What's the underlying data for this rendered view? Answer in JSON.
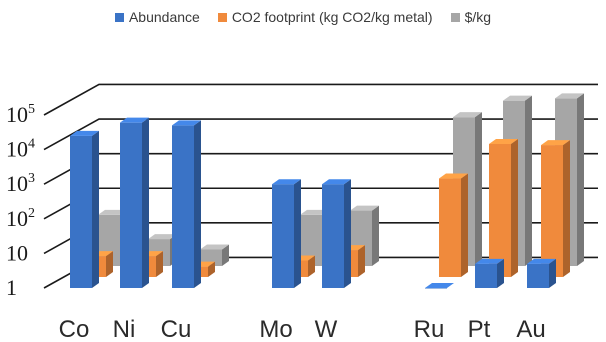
{
  "chart_data": {
    "type": "bar",
    "categories": [
      "Co",
      "Ni",
      "Cu",
      "Mo",
      "W",
      "Ru",
      "Pt",
      "Au"
    ],
    "scale": "log10",
    "ylim": [
      1,
      100000
    ],
    "y_ticks": [
      {
        "value": 1,
        "label": "1",
        "sup": ""
      },
      {
        "value": 10,
        "label": "10",
        "sup": ""
      },
      {
        "value": 100,
        "label": "10",
        "sup": "2"
      },
      {
        "value": 1000,
        "label": "10",
        "sup": "3"
      },
      {
        "value": 10000,
        "label": "10",
        "sup": "4"
      },
      {
        "value": 100000,
        "label": "10",
        "sup": "5"
      }
    ],
    "series": [
      {
        "name": "Abundance",
        "color": "#3a73c6",
        "values": [
          25000,
          60000,
          50000,
          1000,
          1000,
          1,
          5,
          5
        ]
      },
      {
        "name": "CO2 footprint (kg CO2/kg metal)",
        "color": "#f08a3c",
        "values": [
          4,
          4,
          2,
          3,
          6,
          700,
          7000,
          6500
        ]
      },
      {
        "name": "$/kg",
        "color": "#a6a6a6",
        "values": [
          30,
          6,
          3,
          30,
          40,
          20000,
          60000,
          70000
        ]
      }
    ],
    "grid": true,
    "legend": "top"
  }
}
